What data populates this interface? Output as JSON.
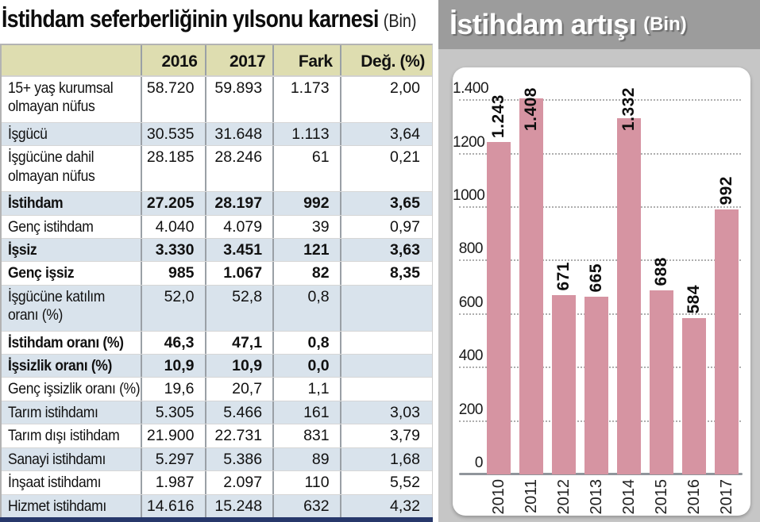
{
  "table": {
    "title": "İstihdam seferberliğinin yılsonu karnesi",
    "title_unit": "(Bin)",
    "headers": [
      "",
      "2016",
      "2017",
      "Fark",
      "Değ. (%)"
    ],
    "rows": [
      {
        "label": "15+ yaş kurumsal olmayan nüfus",
        "values": [
          "58.720",
          "59.893",
          "1.173",
          "2,00"
        ],
        "bold": false,
        "lines": 2
      },
      {
        "label": "İşgücü",
        "values": [
          "30.535",
          "31.648",
          "1.113",
          "3,64"
        ],
        "bold": false,
        "lines": 1
      },
      {
        "label": "İşgücüne dahil olmayan nüfus",
        "values": [
          "28.185",
          "28.246",
          "61",
          "0,21"
        ],
        "bold": false,
        "lines": 2
      },
      {
        "label": "İstihdam",
        "values": [
          "27.205",
          "28.197",
          "992",
          "3,65"
        ],
        "bold": true,
        "lines": 1
      },
      {
        "label": "Genç istihdam",
        "values": [
          "4.040",
          "4.079",
          "39",
          "0,97"
        ],
        "bold": false,
        "lines": 1
      },
      {
        "label": "İşsiz",
        "values": [
          "3.330",
          "3.451",
          "121",
          "3,63"
        ],
        "bold": true,
        "lines": 1
      },
      {
        "label": "Genç işsiz",
        "values": [
          "985",
          "1.067",
          "82",
          "8,35"
        ],
        "bold": true,
        "lines": 1
      },
      {
        "label": "İşgücüne katılım oranı (%)",
        "values": [
          "52,0",
          "52,8",
          "0,8",
          ""
        ],
        "bold": false,
        "lines": 2
      },
      {
        "label": "İstihdam oranı (%)",
        "values": [
          "46,3",
          "47,1",
          "0,8",
          ""
        ],
        "bold": true,
        "lines": 1
      },
      {
        "label": "İşsizlik oranı (%)",
        "values": [
          "10,9",
          "10,9",
          "0,0",
          ""
        ],
        "bold": true,
        "lines": 1
      },
      {
        "label": "Genç işsizlik oranı (%)",
        "values": [
          "19,6",
          "20,7",
          "1,1",
          ""
        ],
        "bold": false,
        "lines": 1
      },
      {
        "label": "Tarım istihdamı",
        "values": [
          "5.305",
          "5.466",
          "161",
          "3,03"
        ],
        "bold": false,
        "lines": 1
      },
      {
        "label": "Tarım dışı istihdam",
        "values": [
          "21.900",
          "22.731",
          "831",
          "3,79"
        ],
        "bold": false,
        "lines": 1
      },
      {
        "label": "Sanayi istihdamı",
        "values": [
          "5.297",
          "5.386",
          "89",
          "1,68"
        ],
        "bold": false,
        "lines": 1
      },
      {
        "label": "İnşaat istihdamı",
        "values": [
          "1.987",
          "2.097",
          "110",
          "5,52"
        ],
        "bold": false,
        "lines": 1
      },
      {
        "label": "Hizmet istihdamı",
        "values": [
          "14.616",
          "15.248",
          "632",
          "4,32"
        ],
        "bold": false,
        "lines": 1
      }
    ]
  },
  "chart": {
    "title": "İstihdam artışı",
    "title_unit": "(Bin)"
  },
  "chart_data": {
    "type": "bar",
    "title": "İstihdam artışı (Bin)",
    "categories": [
      "2010",
      "2011",
      "2012",
      "2013",
      "2014",
      "2015",
      "2016",
      "2017"
    ],
    "values": [
      1243,
      1408,
      671,
      665,
      1332,
      688,
      584,
      992
    ],
    "value_labels": [
      "1.243",
      "1.408",
      "671",
      "665",
      "1.332",
      "688",
      "584",
      "992"
    ],
    "ytick_labels": [
      "1.400",
      "1200",
      "1000",
      "800",
      "600",
      "400",
      "200",
      "0"
    ],
    "ytick_values": [
      1400,
      1200,
      1000,
      800,
      600,
      400,
      200,
      0
    ],
    "ylim": [
      0,
      1400
    ],
    "xlabel": "",
    "ylabel": "",
    "grid": "dotted-horizontal",
    "legend": "none",
    "bar_color": "#d694a2"
  },
  "colors": {
    "header_bg": "#deddb0",
    "row_alt_bg": "#d9e3ec",
    "bar_pink": "#d694a2",
    "navy_bar": "#27386b",
    "panel_bg": "#c6c6c6",
    "panel_title_bg": "#9c9c9c",
    "axis_line": "#90959b"
  }
}
